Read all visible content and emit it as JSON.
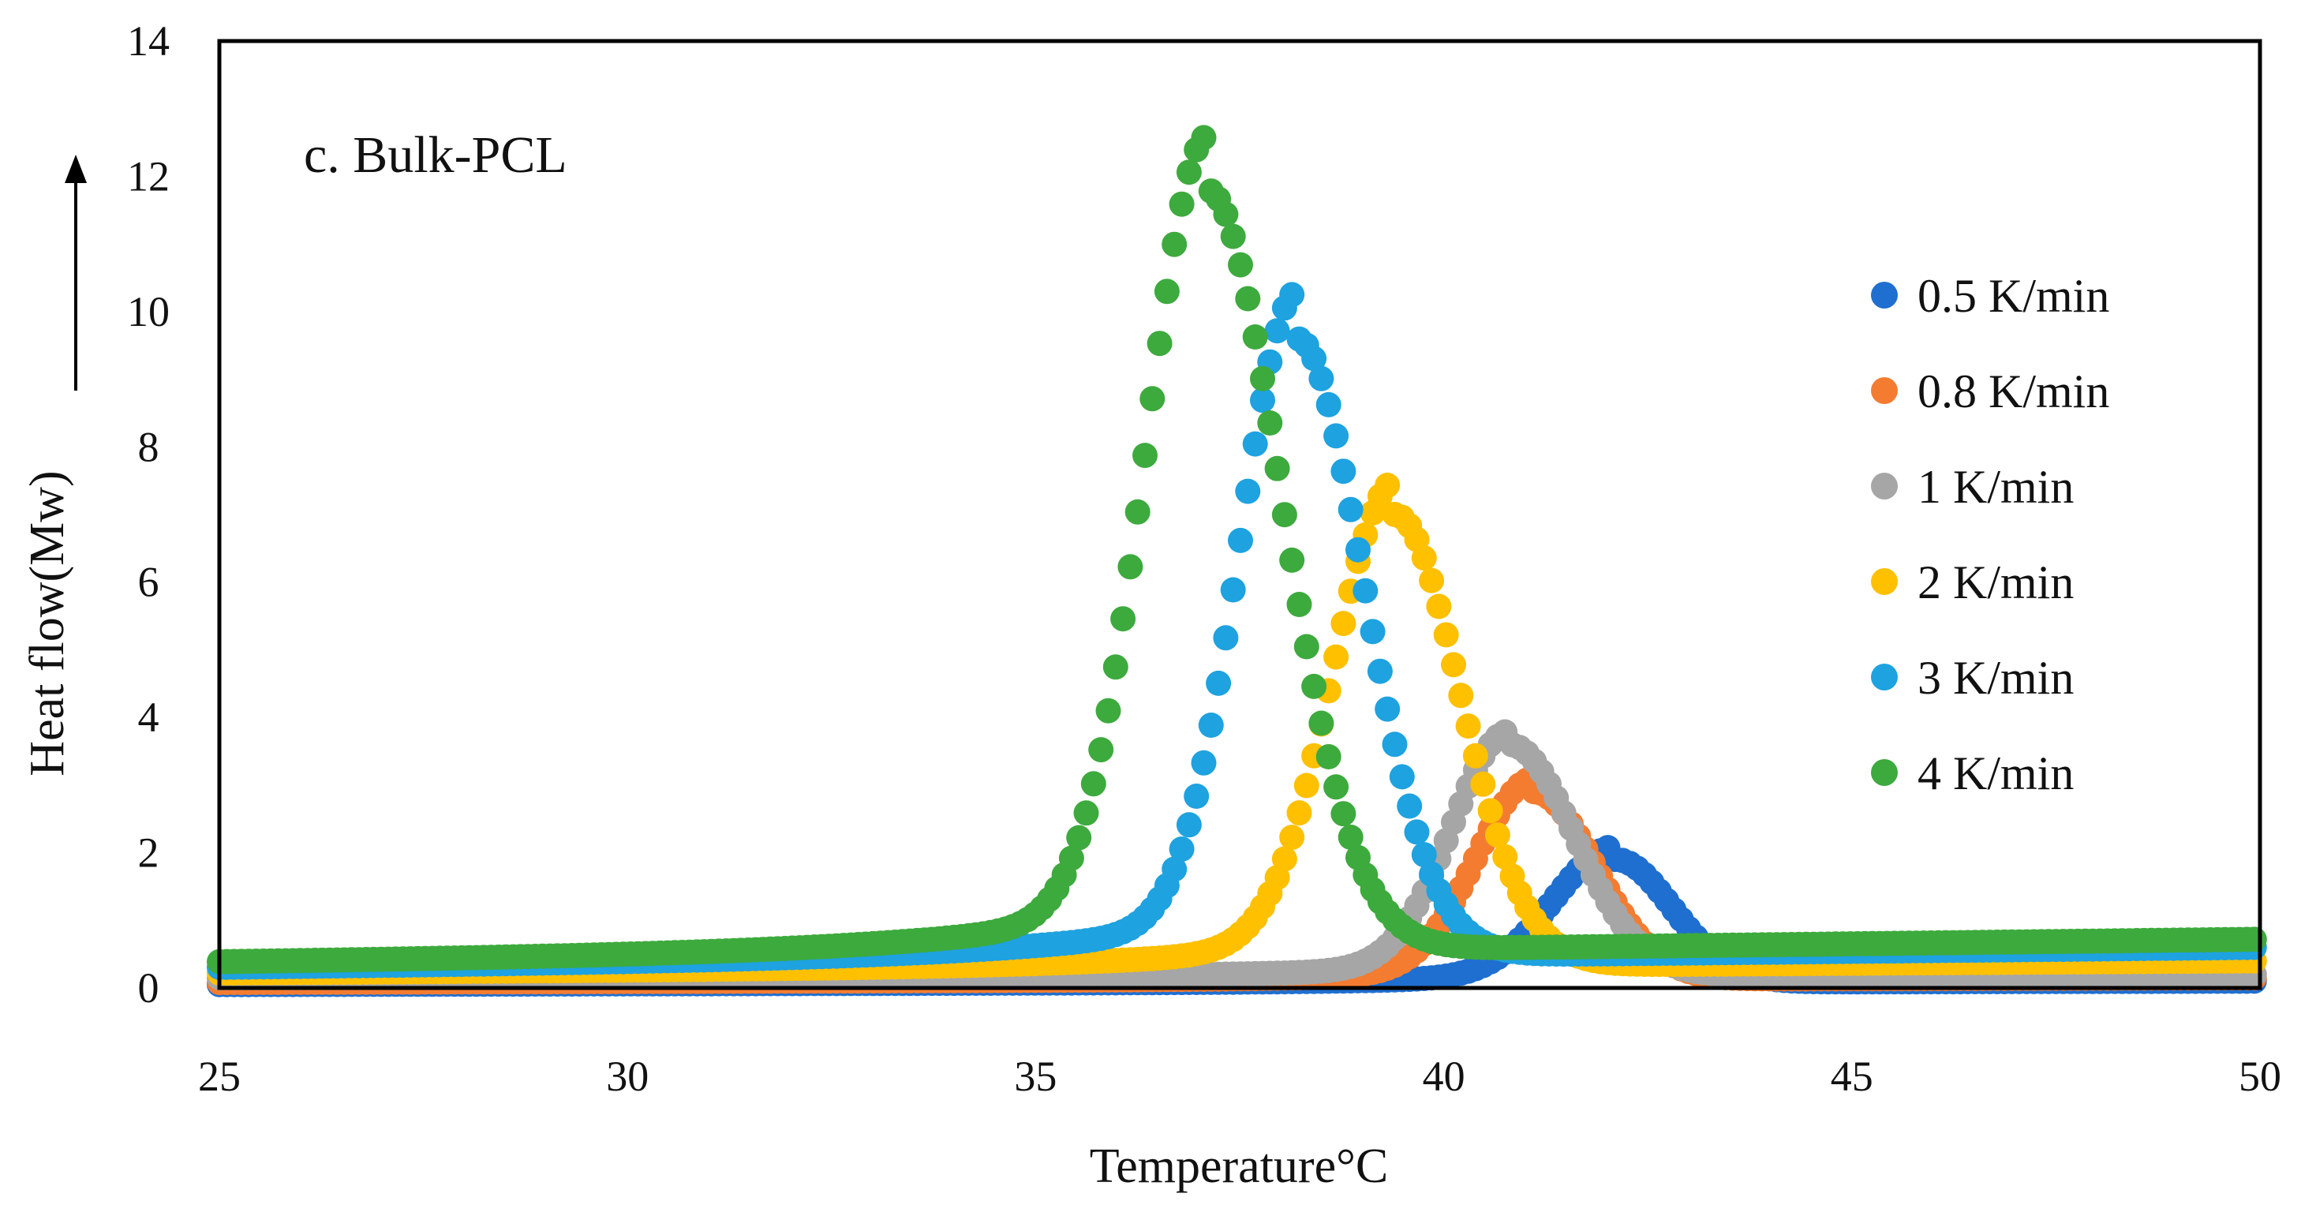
{
  "chart_data": {
    "type": "scatter",
    "panel_label": "c. Bulk-PCL",
    "xlabel": "Temperature°C",
    "ylabel": "Heat flow(Mw)",
    "xlim": [
      25,
      50
    ],
    "ylim": [
      0,
      14
    ],
    "xticks": [
      25,
      30,
      35,
      40,
      45,
      50
    ],
    "yticks": [
      0,
      2,
      4,
      6,
      8,
      10,
      12,
      14
    ],
    "legend_position": "right",
    "series": [
      {
        "name": "0.5 K/min",
        "color": "#1f6fd0",
        "marker_spacing": 0.09,
        "baseline_start": 0.05,
        "baseline_end": 0.1,
        "peak_x": 42.1,
        "peak_y": 1.9,
        "sigma_left": 0.75,
        "sigma_right": 0.7,
        "shoulder_y": 0.2,
        "shoulder_spread": 1.6
      },
      {
        "name": "0.8 K/min",
        "color": "#f47c30",
        "marker_spacing": 0.09,
        "baseline_start": 0.08,
        "baseline_end": 0.15,
        "peak_x": 41.1,
        "peak_y": 2.9,
        "sigma_left": 0.7,
        "sigma_right": 0.75,
        "shoulder_y": 0.2,
        "shoulder_spread": 1.6
      },
      {
        "name": "1 K/min",
        "color": "#a6a6a6",
        "marker_spacing": 0.09,
        "baseline_start": 0.15,
        "baseline_end": 0.2,
        "peak_x": 40.8,
        "peak_y": 3.6,
        "sigma_left": 0.7,
        "sigma_right": 0.8,
        "shoulder_y": 0.2,
        "shoulder_spread": 1.8
      },
      {
        "name": "2 K/min",
        "color": "#ffc000",
        "marker_spacing": 0.09,
        "baseline_start": 0.22,
        "baseline_end": 0.4,
        "peak_x": 39.4,
        "peak_y": 7.0,
        "sigma_left": 0.75,
        "sigma_right": 0.8,
        "shoulder_y": 0.5,
        "shoulder_spread": 2.2
      },
      {
        "name": "3 K/min",
        "color": "#1ea2e0",
        "marker_spacing": 0.09,
        "baseline_start": 0.3,
        "baseline_end": 0.6,
        "peak_x": 38.2,
        "peak_y": 9.6,
        "sigma_left": 0.7,
        "sigma_right": 0.82,
        "shoulder_y": 0.7,
        "shoulder_spread": 2.6
      },
      {
        "name": "4 K/min",
        "color": "#3daa3d",
        "marker_spacing": 0.09,
        "baseline_start": 0.38,
        "baseline_end": 0.72,
        "peak_x": 37.1,
        "peak_y": 11.8,
        "sigma_left": 0.75,
        "sigma_right": 0.9,
        "shoulder_y": 0.8,
        "shoulder_spread": 2.6
      }
    ]
  }
}
